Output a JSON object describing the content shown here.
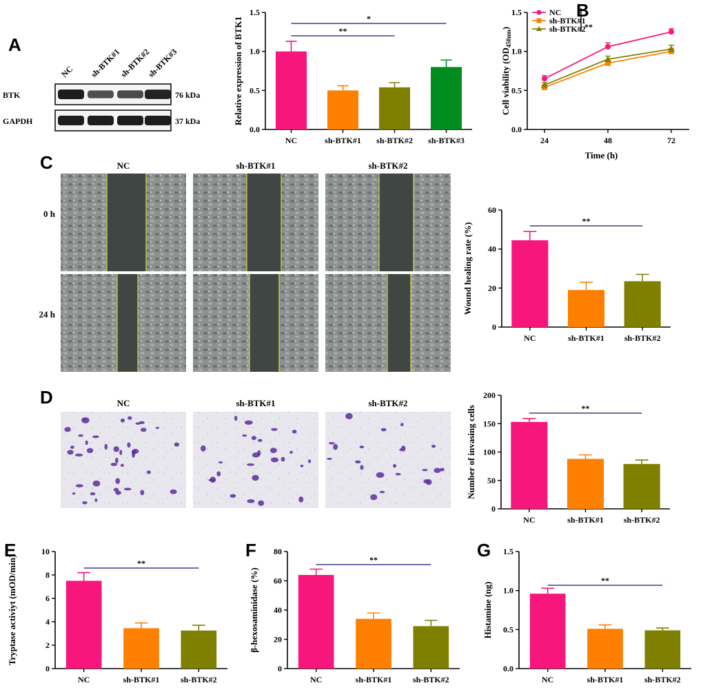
{
  "panel_letters": {
    "A": "A",
    "B": "B",
    "C": "C",
    "D": "D",
    "E": "E",
    "F": "F",
    "G": "G"
  },
  "western_blot": {
    "lanes": [
      "NC",
      "sh-BTK#1",
      "sh-BTK#2",
      "sh-BTK#3"
    ],
    "rows": [
      {
        "label": "BTK",
        "kda": "76 kDa",
        "intensity": [
          1.0,
          0.55,
          0.6,
          0.95
        ]
      },
      {
        "label": "GAPDH",
        "kda": "37 kDa",
        "intensity": [
          1.0,
          1.0,
          1.0,
          1.0
        ]
      }
    ]
  },
  "colors": {
    "NC": "#f7167c",
    "sh1": "#ff8000",
    "sh2": "#7f7f00",
    "sh3": "#008c1e",
    "axis": "#000000",
    "sig": "#3b3b8f"
  },
  "images": {
    "wound": {
      "cols": [
        "NC",
        "sh-BTK#1",
        "sh-BTK#2"
      ],
      "rows": [
        "0 h",
        "24 h"
      ]
    },
    "invasion": {
      "cols": [
        "NC",
        "sh-BTK#1",
        "sh-BTK#2"
      ]
    }
  },
  "chart_data": [
    {
      "id": "A-bar",
      "type": "bar",
      "ylabel": "Relative expression of BTK1",
      "categories": [
        "NC",
        "sh-BTK#1",
        "sh-BTK#2",
        "sh-BTK#3"
      ],
      "values": [
        1.0,
        0.5,
        0.54,
        0.8
      ],
      "errors": [
        0.13,
        0.06,
        0.06,
        0.09
      ],
      "ylim": [
        0,
        1.5
      ],
      "yticks": [
        "0.0",
        "0.5",
        "1.0",
        "1.5"
      ],
      "sig": [
        {
          "from": 0,
          "to": 2,
          "label": "**"
        },
        {
          "from": 0,
          "to": 3,
          "label": "*"
        }
      ]
    },
    {
      "id": "B-line",
      "type": "line",
      "xlabel": "Time (h)",
      "ylabel_main": "Cell viability (OD",
      "ylabel_sub": "450nm",
      "ylabel_end": ")",
      "x": [
        "24",
        "48",
        "72"
      ],
      "ylim": [
        0,
        1.5
      ],
      "yticks": [
        "0.0",
        "0.5",
        "1.0",
        "1.5"
      ],
      "series": [
        {
          "name": "NC",
          "values": [
            0.65,
            1.06,
            1.25
          ],
          "errors": [
            0.04,
            0.05,
            0.04
          ]
        },
        {
          "name": "sh-BTK#1",
          "values": [
            0.54,
            0.85,
            1.0
          ],
          "errors": [
            0.03,
            0.03,
            0.04
          ]
        },
        {
          "name": "sh-BTK#2",
          "values": [
            0.57,
            0.9,
            1.03
          ],
          "errors": [
            0.03,
            0.04,
            0.05
          ]
        }
      ],
      "sig": "**"
    },
    {
      "id": "C-bar",
      "type": "bar",
      "ylabel": "Wound healing rate (%)",
      "categories": [
        "NC",
        "sh-BTK#1",
        "sh-BTK#2"
      ],
      "values": [
        44.5,
        19,
        23.5
      ],
      "errors": [
        4.5,
        4,
        3.5
      ],
      "ylim": [
        0,
        60
      ],
      "yticks": [
        "0",
        "20",
        "40",
        "60"
      ],
      "sig": [
        {
          "from": 0,
          "to": 2,
          "label": "**"
        }
      ]
    },
    {
      "id": "D-bar",
      "type": "bar",
      "ylabel": "Number of invasing cells",
      "categories": [
        "NC",
        "sh-BTK#1",
        "sh-BTK#2"
      ],
      "values": [
        153,
        88,
        79
      ],
      "errors": [
        6,
        7,
        7
      ],
      "ylim": [
        0,
        200
      ],
      "yticks": [
        "0",
        "50",
        "100",
        "150",
        "200"
      ],
      "sig": [
        {
          "from": 0,
          "to": 2,
          "label": "**"
        }
      ]
    },
    {
      "id": "E-bar",
      "type": "bar",
      "ylabel": "Tryptase activiyt (mOD/min)",
      "categories": [
        "NC",
        "sh-BTK#1",
        "sh-BTK#2"
      ],
      "values": [
        7.5,
        3.45,
        3.25
      ],
      "errors": [
        0.7,
        0.45,
        0.45
      ],
      "ylim": [
        0,
        10
      ],
      "yticks": [
        "0",
        "2",
        "4",
        "6",
        "8",
        "10"
      ],
      "sig": [
        {
          "from": 0,
          "to": 2,
          "label": "**"
        }
      ]
    },
    {
      "id": "F-bar",
      "type": "bar",
      "ylabel": "β-hexosaminidase (%)",
      "categories": [
        "NC",
        "sh-BTK#1",
        "sh-BTK#2"
      ],
      "values": [
        64,
        34,
        29
      ],
      "errors": [
        4,
        4,
        4
      ],
      "ylim": [
        0,
        80
      ],
      "yticks": [
        "0",
        "20",
        "40",
        "60",
        "80"
      ],
      "sig": [
        {
          "from": 0,
          "to": 2,
          "label": "**"
        }
      ]
    },
    {
      "id": "G-bar",
      "type": "bar",
      "ylabel": "Histamine (ng)",
      "categories": [
        "NC",
        "sh-BTK#1",
        "sh-BTK#2"
      ],
      "values": [
        0.96,
        0.51,
        0.49
      ],
      "errors": [
        0.07,
        0.05,
        0.03
      ],
      "ylim": [
        0,
        1.5
      ],
      "yticks": [
        "0.0",
        "0.5",
        "1.0",
        "1.5"
      ],
      "sig": [
        {
          "from": 0,
          "to": 2,
          "label": "**"
        }
      ]
    }
  ]
}
